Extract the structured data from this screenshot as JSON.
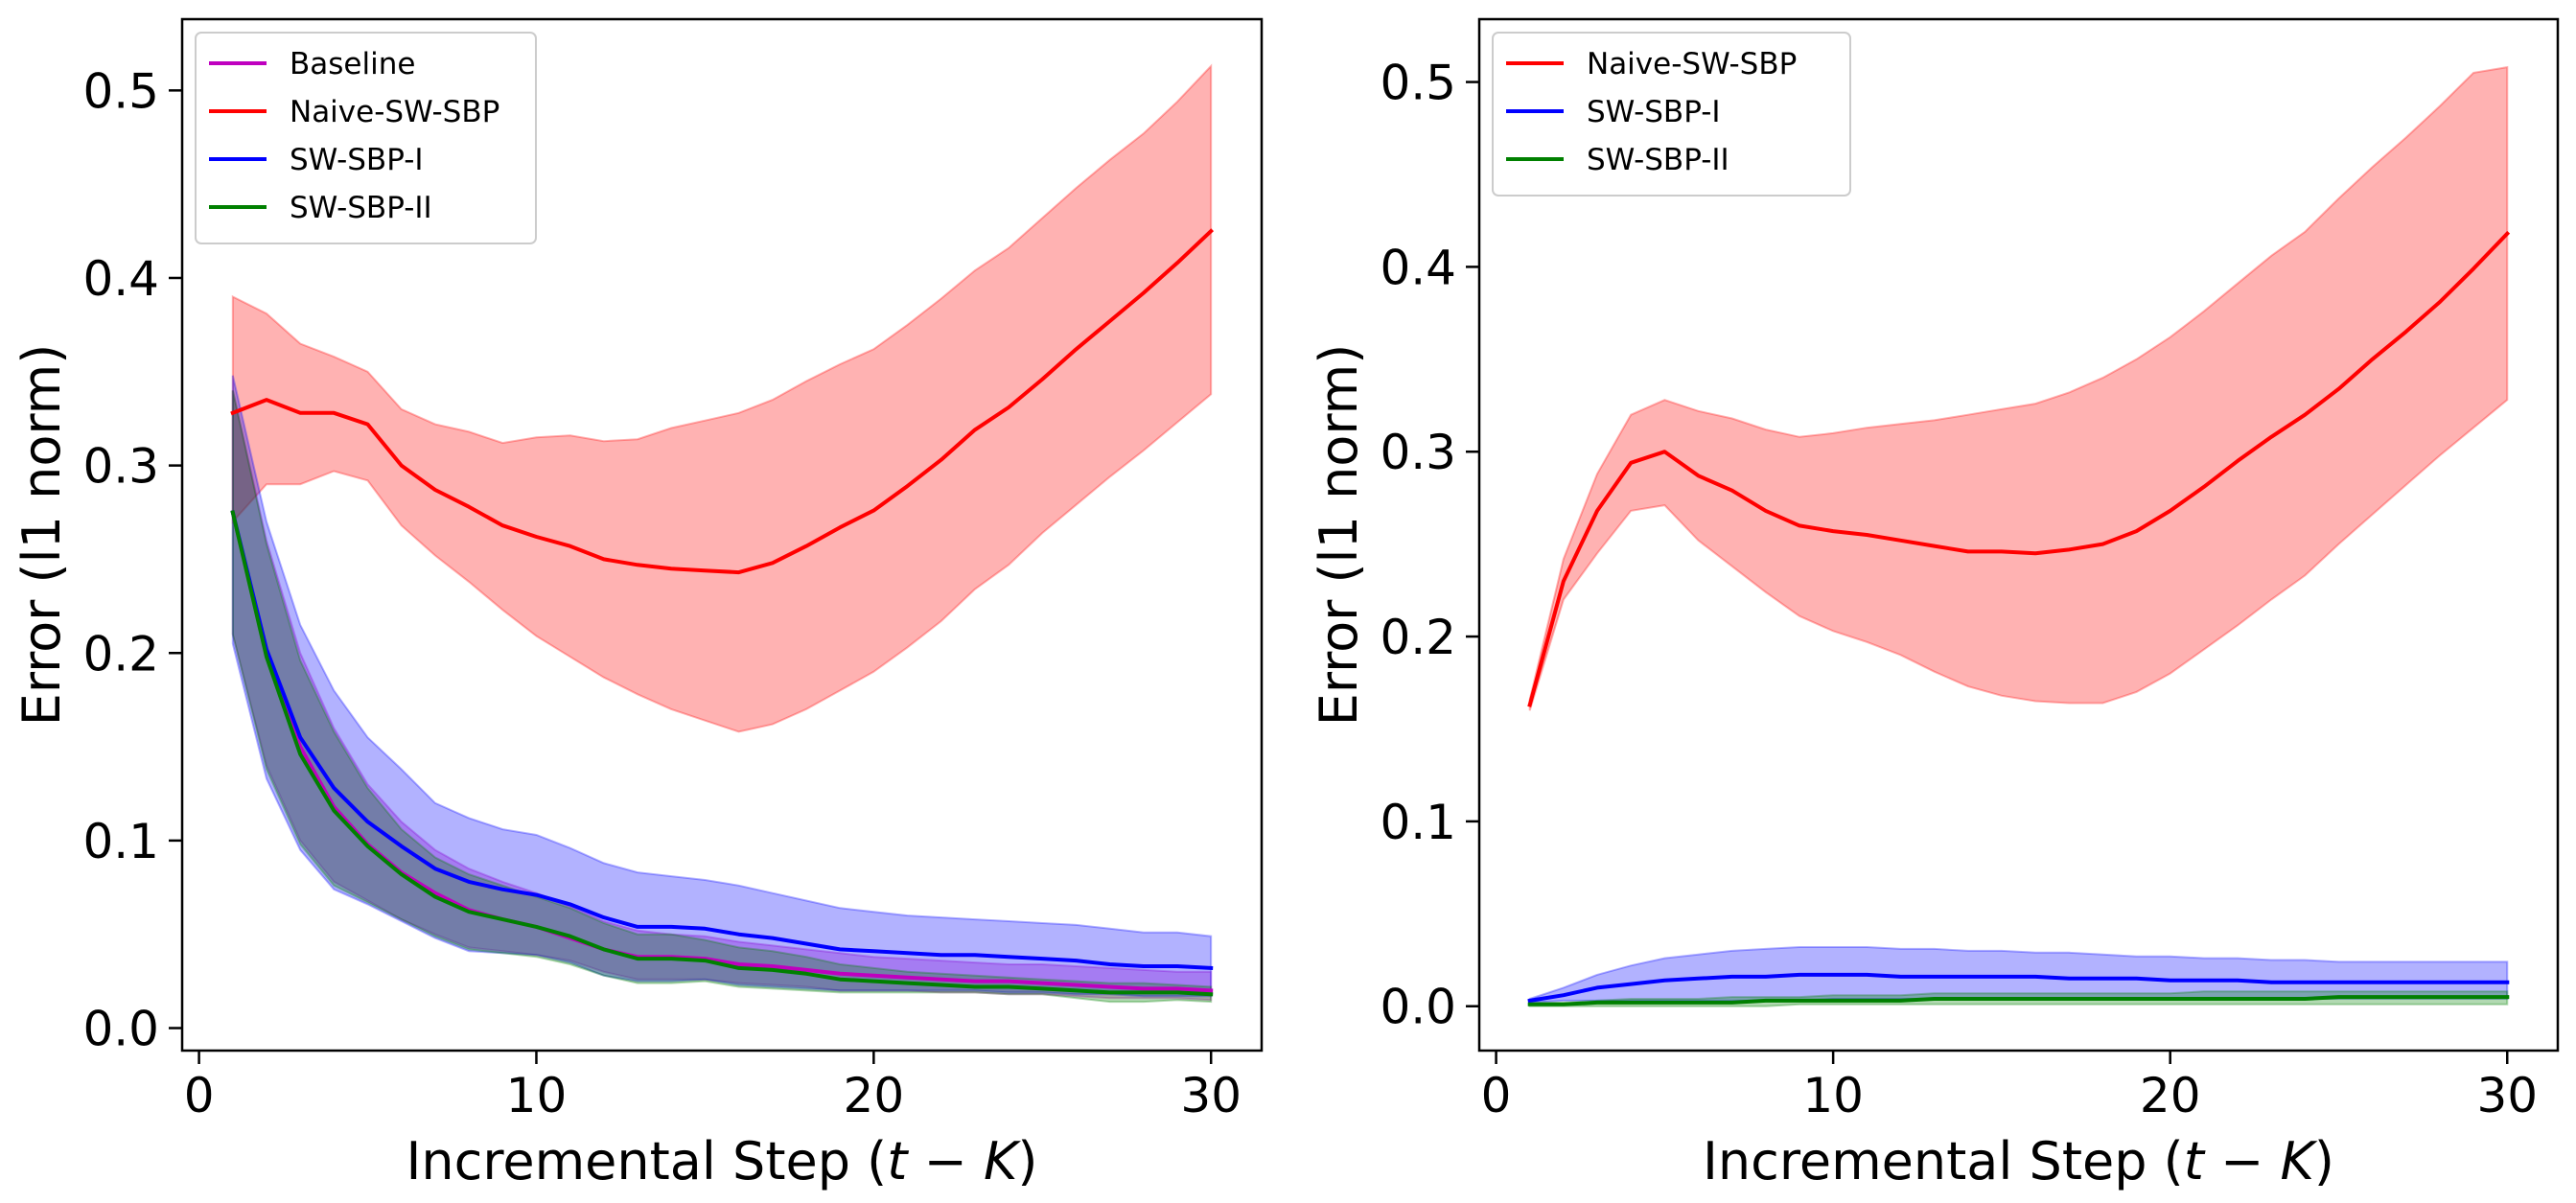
{
  "chart_data": [
    {
      "type": "line",
      "xlabel": "Incremental Step (",
      "xlabel_math": "t − K",
      "xlabel_close": ")",
      "ylabel": "Error (l1 norm)",
      "xlim": [
        -0.5,
        31.5
      ],
      "ylim": [
        -0.012,
        0.538
      ],
      "xticks": [
        0,
        10,
        20,
        30
      ],
      "xtick_labels": [
        "0",
        "10",
        "20",
        "30"
      ],
      "yticks": [
        0.0,
        0.1,
        0.2,
        0.3,
        0.4,
        0.5
      ],
      "ytick_labels": [
        "0.0",
        "0.1",
        "0.2",
        "0.3",
        "0.4",
        "0.5"
      ],
      "legend_position": "upper-left",
      "x": [
        1,
        2,
        3,
        4,
        5,
        6,
        7,
        8,
        9,
        10,
        11,
        12,
        13,
        14,
        15,
        16,
        17,
        18,
        19,
        20,
        21,
        22,
        23,
        24,
        25,
        26,
        27,
        28,
        29,
        30
      ],
      "series": [
        {
          "name": "Baseline",
          "color": "#bf00bf",
          "band_color": "#bf00bf",
          "values": [
            0.275,
            0.2,
            0.15,
            0.118,
            0.098,
            0.083,
            0.072,
            0.063,
            0.058,
            0.054,
            0.048,
            0.042,
            0.038,
            0.038,
            0.037,
            0.034,
            0.033,
            0.031,
            0.029,
            0.028,
            0.027,
            0.026,
            0.025,
            0.025,
            0.024,
            0.023,
            0.022,
            0.021,
            0.021,
            0.02
          ],
          "lower": [
            0.21,
            0.14,
            0.1,
            0.078,
            0.068,
            0.058,
            0.05,
            0.043,
            0.041,
            0.039,
            0.036,
            0.03,
            0.026,
            0.026,
            0.026,
            0.024,
            0.023,
            0.022,
            0.02,
            0.02,
            0.02,
            0.019,
            0.019,
            0.018,
            0.018,
            0.017,
            0.016,
            0.016,
            0.016,
            0.015
          ],
          "upper": [
            0.34,
            0.26,
            0.2,
            0.16,
            0.13,
            0.11,
            0.095,
            0.085,
            0.078,
            0.072,
            0.065,
            0.057,
            0.052,
            0.05,
            0.049,
            0.046,
            0.044,
            0.042,
            0.04,
            0.038,
            0.037,
            0.036,
            0.035,
            0.034,
            0.034,
            0.033,
            0.032,
            0.031,
            0.03,
            0.03
          ]
        },
        {
          "name": "Naive-SW-SBP",
          "color": "#ff0000",
          "band_color": "#ff0000",
          "values": [
            0.328,
            0.335,
            0.328,
            0.328,
            0.322,
            0.3,
            0.287,
            0.278,
            0.268,
            0.262,
            0.257,
            0.25,
            0.247,
            0.245,
            0.244,
            0.243,
            0.248,
            0.257,
            0.267,
            0.276,
            0.289,
            0.303,
            0.319,
            0.331,
            0.346,
            0.362,
            0.377,
            0.392,
            0.408,
            0.425
          ],
          "lower": [
            0.27,
            0.29,
            0.29,
            0.297,
            0.292,
            0.268,
            0.252,
            0.238,
            0.223,
            0.209,
            0.198,
            0.187,
            0.178,
            0.17,
            0.164,
            0.158,
            0.162,
            0.17,
            0.18,
            0.19,
            0.203,
            0.217,
            0.234,
            0.247,
            0.264,
            0.279,
            0.294,
            0.308,
            0.323,
            0.338
          ],
          "upper": [
            0.39,
            0.381,
            0.365,
            0.358,
            0.35,
            0.33,
            0.322,
            0.318,
            0.312,
            0.315,
            0.316,
            0.313,
            0.314,
            0.32,
            0.324,
            0.328,
            0.335,
            0.345,
            0.354,
            0.362,
            0.375,
            0.389,
            0.404,
            0.416,
            0.432,
            0.448,
            0.463,
            0.477,
            0.494,
            0.513
          ]
        },
        {
          "name": "SW-SBP-I",
          "color": "#0000ff",
          "band_color": "#0000ff",
          "values": [
            0.275,
            0.202,
            0.155,
            0.128,
            0.11,
            0.097,
            0.085,
            0.078,
            0.074,
            0.071,
            0.066,
            0.059,
            0.054,
            0.054,
            0.053,
            0.05,
            0.048,
            0.045,
            0.042,
            0.041,
            0.04,
            0.039,
            0.039,
            0.038,
            0.037,
            0.036,
            0.034,
            0.033,
            0.033,
            0.032
          ],
          "lower": [
            0.205,
            0.133,
            0.095,
            0.074,
            0.066,
            0.057,
            0.048,
            0.041,
            0.04,
            0.039,
            0.035,
            0.028,
            0.025,
            0.025,
            0.026,
            0.023,
            0.022,
            0.021,
            0.02,
            0.02,
            0.02,
            0.02,
            0.02,
            0.019,
            0.019,
            0.018,
            0.018,
            0.017,
            0.017,
            0.017
          ],
          "upper": [
            0.348,
            0.27,
            0.215,
            0.18,
            0.155,
            0.138,
            0.12,
            0.112,
            0.106,
            0.103,
            0.096,
            0.088,
            0.083,
            0.081,
            0.079,
            0.076,
            0.072,
            0.068,
            0.064,
            0.062,
            0.06,
            0.059,
            0.058,
            0.057,
            0.056,
            0.055,
            0.053,
            0.051,
            0.051,
            0.049
          ]
        },
        {
          "name": "SW-SBP-II",
          "color": "#008000",
          "band_color": "#008000",
          "values": [
            0.275,
            0.198,
            0.146,
            0.116,
            0.097,
            0.082,
            0.07,
            0.062,
            0.058,
            0.054,
            0.049,
            0.042,
            0.037,
            0.037,
            0.036,
            0.032,
            0.031,
            0.029,
            0.026,
            0.025,
            0.024,
            0.023,
            0.022,
            0.022,
            0.021,
            0.02,
            0.019,
            0.019,
            0.019,
            0.018
          ],
          "lower": [
            0.21,
            0.138,
            0.098,
            0.076,
            0.067,
            0.058,
            0.049,
            0.042,
            0.04,
            0.038,
            0.034,
            0.028,
            0.024,
            0.024,
            0.025,
            0.022,
            0.021,
            0.02,
            0.019,
            0.019,
            0.019,
            0.019,
            0.019,
            0.018,
            0.018,
            0.016,
            0.014,
            0.014,
            0.015,
            0.014
          ],
          "upper": [
            0.34,
            0.258,
            0.196,
            0.158,
            0.128,
            0.106,
            0.091,
            0.082,
            0.076,
            0.07,
            0.064,
            0.056,
            0.05,
            0.05,
            0.047,
            0.043,
            0.041,
            0.038,
            0.034,
            0.032,
            0.03,
            0.029,
            0.028,
            0.027,
            0.026,
            0.025,
            0.024,
            0.024,
            0.023,
            0.022
          ]
        }
      ]
    },
    {
      "type": "line",
      "xlabel": "Incremental Step (",
      "xlabel_math": "t − K",
      "xlabel_close": ")",
      "ylabel": "Error (l1 norm)",
      "xlim": [
        -0.5,
        31.5
      ],
      "ylim": [
        -0.024,
        0.534
      ],
      "xticks": [
        0,
        10,
        20,
        30
      ],
      "xtick_labels": [
        "0",
        "10",
        "20",
        "30"
      ],
      "yticks": [
        0.0,
        0.1,
        0.2,
        0.3,
        0.4,
        0.5
      ],
      "ytick_labels": [
        "0.0",
        "0.1",
        "0.2",
        "0.3",
        "0.4",
        "0.5"
      ],
      "legend_position": "upper-left",
      "x": [
        1,
        2,
        3,
        4,
        5,
        6,
        7,
        8,
        9,
        10,
        11,
        12,
        13,
        14,
        15,
        16,
        17,
        18,
        19,
        20,
        21,
        22,
        23,
        24,
        25,
        26,
        27,
        28,
        29,
        30
      ],
      "series": [
        {
          "name": "Naive-SW-SBP",
          "color": "#ff0000",
          "band_color": "#ff0000",
          "values": [
            0.163,
            0.23,
            0.268,
            0.294,
            0.3,
            0.287,
            0.279,
            0.268,
            0.26,
            0.257,
            0.255,
            0.252,
            0.249,
            0.246,
            0.246,
            0.245,
            0.247,
            0.25,
            0.257,
            0.268,
            0.281,
            0.295,
            0.308,
            0.32,
            0.334,
            0.35,
            0.365,
            0.381,
            0.399,
            0.418
          ],
          "lower": [
            0.16,
            0.22,
            0.245,
            0.268,
            0.271,
            0.252,
            0.238,
            0.224,
            0.211,
            0.203,
            0.197,
            0.19,
            0.181,
            0.173,
            0.168,
            0.165,
            0.164,
            0.164,
            0.17,
            0.18,
            0.193,
            0.206,
            0.22,
            0.233,
            0.25,
            0.266,
            0.282,
            0.298,
            0.313,
            0.328
          ],
          "upper": [
            0.166,
            0.242,
            0.288,
            0.32,
            0.328,
            0.322,
            0.318,
            0.312,
            0.308,
            0.31,
            0.313,
            0.315,
            0.317,
            0.32,
            0.323,
            0.326,
            0.332,
            0.34,
            0.35,
            0.362,
            0.376,
            0.391,
            0.406,
            0.419,
            0.437,
            0.454,
            0.47,
            0.487,
            0.505,
            0.508
          ]
        },
        {
          "name": "SW-SBP-I",
          "color": "#0000ff",
          "band_color": "#0000ff",
          "values": [
            0.003,
            0.006,
            0.01,
            0.012,
            0.014,
            0.015,
            0.016,
            0.016,
            0.017,
            0.017,
            0.017,
            0.016,
            0.016,
            0.016,
            0.016,
            0.016,
            0.015,
            0.015,
            0.015,
            0.014,
            0.014,
            0.014,
            0.013,
            0.013,
            0.013,
            0.013,
            0.013,
            0.013,
            0.013,
            0.013
          ],
          "lower": [
            0.002,
            0.003,
            0.003,
            0.003,
            0.003,
            0.003,
            0.003,
            0.003,
            0.003,
            0.004,
            0.004,
            0.004,
            0.004,
            0.004,
            0.004,
            0.004,
            0.004,
            0.004,
            0.004,
            0.004,
            0.004,
            0.004,
            0.004,
            0.004,
            0.004,
            0.004,
            0.004,
            0.004,
            0.004,
            0.004
          ],
          "upper": [
            0.004,
            0.01,
            0.017,
            0.022,
            0.026,
            0.028,
            0.03,
            0.031,
            0.032,
            0.032,
            0.032,
            0.031,
            0.031,
            0.03,
            0.03,
            0.029,
            0.029,
            0.028,
            0.027,
            0.027,
            0.026,
            0.026,
            0.025,
            0.025,
            0.024,
            0.024,
            0.024,
            0.024,
            0.024,
            0.024
          ]
        },
        {
          "name": "SW-SBP-II",
          "color": "#008000",
          "band_color": "#008000",
          "values": [
            0.001,
            0.001,
            0.002,
            0.002,
            0.002,
            0.002,
            0.002,
            0.003,
            0.003,
            0.003,
            0.003,
            0.003,
            0.004,
            0.004,
            0.004,
            0.004,
            0.004,
            0.004,
            0.004,
            0.004,
            0.004,
            0.004,
            0.004,
            0.004,
            0.005,
            0.005,
            0.005,
            0.005,
            0.005,
            0.005
          ],
          "lower": [
            0.0,
            0.0,
            0.0,
            0.0,
            0.0,
            0.0,
            0.0,
            0.0,
            0.001,
            0.001,
            0.001,
            0.001,
            0.001,
            0.001,
            0.001,
            0.001,
            0.001,
            0.001,
            0.001,
            0.001,
            0.001,
            0.001,
            0.001,
            0.001,
            0.001,
            0.001,
            0.001,
            0.001,
            0.001,
            0.001
          ],
          "upper": [
            0.002,
            0.002,
            0.003,
            0.004,
            0.004,
            0.004,
            0.005,
            0.005,
            0.005,
            0.006,
            0.006,
            0.006,
            0.007,
            0.007,
            0.007,
            0.007,
            0.007,
            0.007,
            0.007,
            0.007,
            0.008,
            0.008,
            0.008,
            0.008,
            0.008,
            0.008,
            0.008,
            0.008,
            0.008,
            0.008
          ]
        }
      ]
    }
  ]
}
